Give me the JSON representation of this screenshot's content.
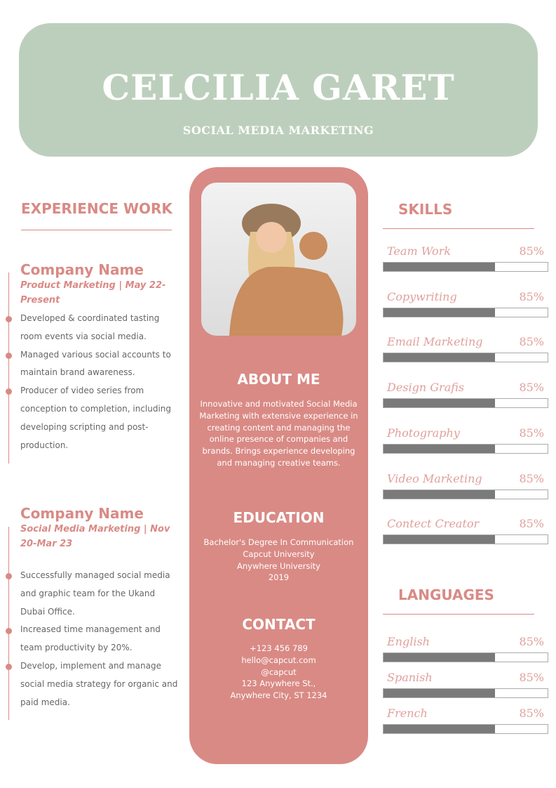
{
  "header": {
    "name": "CELCILIA GARET",
    "role": "SOCIAL MEDIA MARKETING"
  },
  "experience": {
    "title": "EXPERIENCE WORK",
    "jobs": [
      {
        "company": "Company Name",
        "subtitle": "Product Marketing | May 22-Present",
        "bullets": [
          "Developed & coordinated tasting room events via social media.",
          "Managed various social accounts to maintain brand awareness.",
          "Producer of video series from conception to completion, including developing scripting and post-production."
        ]
      },
      {
        "company": "Company Name",
        "subtitle": "Social Media Marketing | Nov 20-Mar 23",
        "bullets": [
          "Successfully managed social media and graphic team for the Ukand Dubai Office.",
          "Increased time management and team productivity by 20%.",
          "Develop, implement and manage social media strategy for organic and paid media."
        ]
      }
    ]
  },
  "about": {
    "title": "ABOUT ME",
    "text": "Innovative and motivated Social Media Marketing with extensive experience in creating content and managing the online presence of companies and brands. Brings experience developing and managing creative teams."
  },
  "education": {
    "title": "EDUCATION",
    "lines": [
      "Bachelor's Degree In Communication",
      "Capcut University",
      "Anywhere University",
      "2019"
    ]
  },
  "contact": {
    "title": "CONTACT",
    "lines": [
      "+123  456 789",
      "hello@capcut.com",
      "@capcut",
      "123 Anywhere St.,",
      "Anywhere City, ST 1234"
    ]
  },
  "skills": {
    "title": "SKILLS",
    "items": [
      {
        "name": "Team Work",
        "value": "85%",
        "fill": 0.68
      },
      {
        "name": "Copywriting",
        "value": "85%",
        "fill": 0.68
      },
      {
        "name": "Email Marketing",
        "value": "85%",
        "fill": 0.68
      },
      {
        "name": "Design Grafis",
        "value": "85%",
        "fill": 0.68
      },
      {
        "name": "Photography",
        "value": "85%",
        "fill": 0.68
      },
      {
        "name": "Video Marketing",
        "value": "85%",
        "fill": 0.68
      },
      {
        "name": "Contect Creator",
        "value": "85%",
        "fill": 0.68
      }
    ]
  },
  "languages": {
    "title": "LANGUAGES",
    "items": [
      {
        "name": "English",
        "value": "85%",
        "fill": 0.68
      },
      {
        "name": "Spanish",
        "value": "85%",
        "fill": 0.68
      },
      {
        "name": "French",
        "value": "85%",
        "fill": 0.68
      }
    ]
  },
  "colors": {
    "accent": "#d98a85",
    "header_bg": "#bccfbc",
    "bar_fill": "#7a7a7a"
  }
}
